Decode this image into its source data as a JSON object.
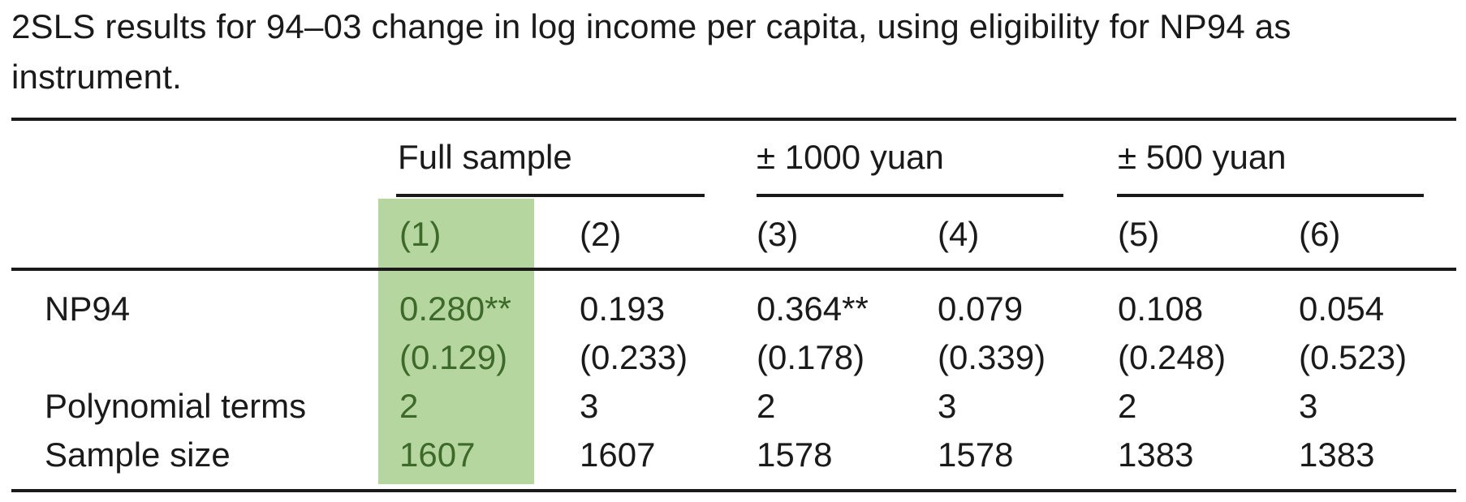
{
  "caption": "2SLS results for 94–03 change in log income per capita, using eligibility for NP94 as instrument.",
  "groups": [
    "Full sample",
    "± 1000 yuan",
    "± 500 yuan"
  ],
  "columns": [
    "(1)",
    "(2)",
    "(3)",
    "(4)",
    "(5)",
    "(6)"
  ],
  "highlight_color": "#b6d69f",
  "highlight_column": "(1)",
  "rows": {
    "np94": {
      "label": "NP94",
      "coef": [
        "0.280**",
        "0.193",
        "0.364**",
        "0.079",
        "0.108",
        "0.054"
      ],
      "se": [
        "(0.129)",
        "(0.233)",
        "(0.178)",
        "(0.339)",
        "(0.248)",
        "(0.523)"
      ]
    },
    "poly": {
      "label": "Polynomial terms",
      "values": [
        "2",
        "3",
        "2",
        "3",
        "2",
        "3"
      ]
    },
    "sample": {
      "label": "Sample size",
      "values": [
        "1607",
        "1607",
        "1578",
        "1578",
        "1383",
        "1383"
      ]
    }
  }
}
